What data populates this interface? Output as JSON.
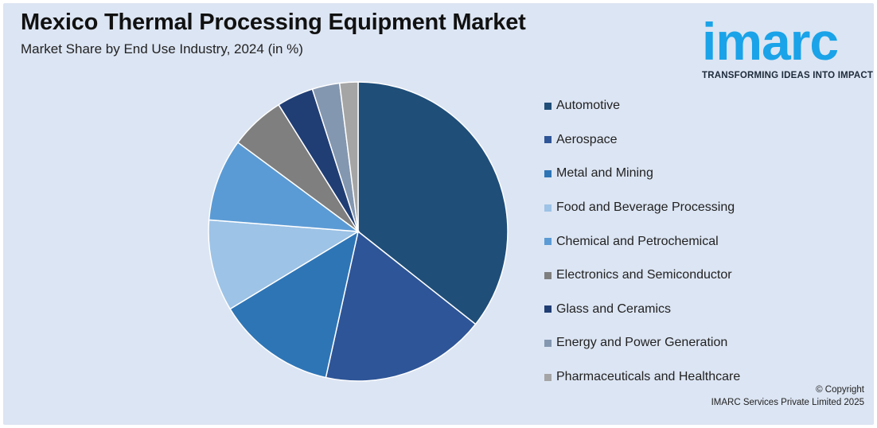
{
  "title": "Mexico Thermal Processing Equipment Market",
  "subtitle": "Market Share by End Use Industry, 2024 (in %)",
  "logo": {
    "word": "imarc",
    "tagline": "TRANSFORMING IDEAS INTO IMPACT",
    "color": "#1aa3e8"
  },
  "copyright": {
    "line1": "© Copyright",
    "line2": "IMARC Services Private Limited 2025"
  },
  "chart_data": {
    "type": "pie",
    "title": "Mexico Thermal Processing Equipment Market",
    "subtitle": "Market Share by End Use Industry, 2024 (in %)",
    "legend_position": "right",
    "categories": [
      "Automotive",
      "Aerospace",
      "Metal and Mining",
      "Food and Beverage Processing",
      "Chemical and Petrochemical",
      "Electronics and Semiconductor",
      "Glass and Ceramics",
      "Energy and Power Generation",
      "Pharmaceuticals and Healthcare"
    ],
    "values": [
      36,
      18,
      13,
      10,
      9,
      6,
      4,
      3,
      2
    ],
    "colors": [
      "#1f4e79",
      "#2e5597",
      "#2e75b6",
      "#9dc3e6",
      "#5b9bd5",
      "#7f7f7f",
      "#203e74",
      "#8497b0",
      "#a5a5a5"
    ]
  }
}
